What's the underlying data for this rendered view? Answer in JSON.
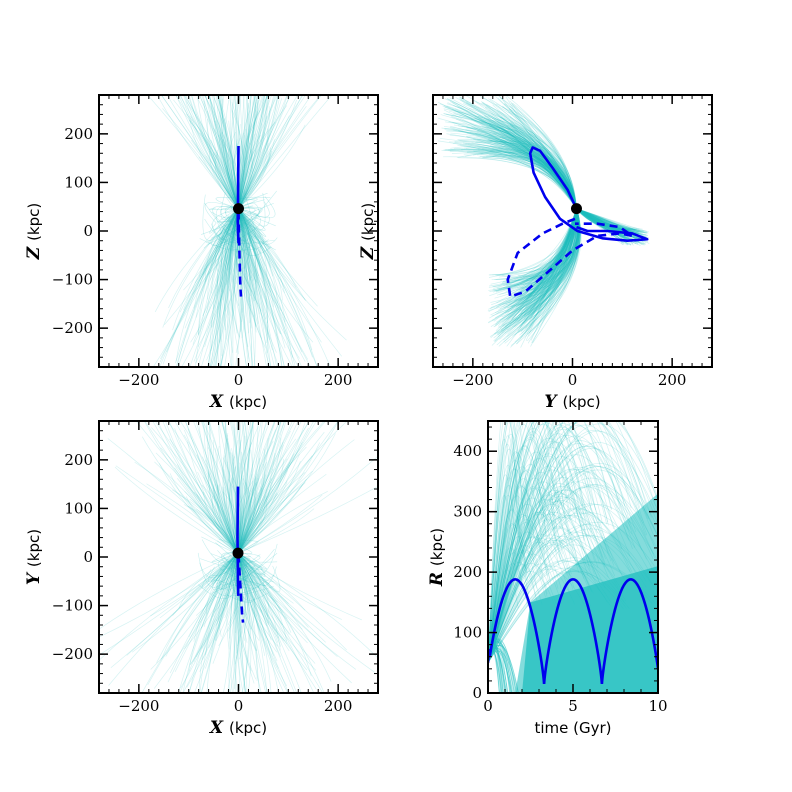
{
  "chart_data": [
    {
      "type": "line",
      "panel": "top-left",
      "xlabel_var": "X",
      "xlabel_unit": "(kpc)",
      "ylabel_var": "Z",
      "ylabel_unit": "(kpc)",
      "xlim": [
        -280,
        280
      ],
      "ylim": [
        -280,
        280
      ],
      "xticks": [
        -200,
        0,
        200
      ],
      "yticks": [
        -200,
        -100,
        0,
        100,
        200
      ],
      "xticklabels": [
        "−200",
        "0",
        "200"
      ],
      "yticklabels": [
        "−200",
        "−100",
        "0",
        "100",
        "200"
      ],
      "marker": {
        "x": 0,
        "y": 46
      },
      "series": [
        {
          "style": "solid",
          "points": [
            [
              0,
              175
            ],
            [
              -0.5,
              120
            ],
            [
              -1,
              60
            ],
            [
              -1.5,
              20
            ],
            [
              -1,
              0
            ],
            [
              0,
              -25
            ]
          ]
        },
        {
          "style": "dashed",
          "points": [
            [
              0,
              40
            ],
            [
              1,
              -10
            ],
            [
              2,
              -50
            ],
            [
              3,
              -90
            ],
            [
              4,
              -120
            ],
            [
              5,
              -135
            ]
          ]
        }
      ],
      "cloud_color": "#1fbfbf",
      "line_color": "#0000ee"
    },
    {
      "type": "line",
      "panel": "top-right",
      "xlabel_var": "Y",
      "xlabel_unit": "(kpc)",
      "ylabel_var": "Z",
      "ylabel_unit": "(kpc)",
      "xlim": [
        -280,
        280
      ],
      "ylim": [
        -280,
        280
      ],
      "xticks": [
        -200,
        0,
        200
      ],
      "yticks": [
        -200,
        -100,
        0,
        100,
        200
      ],
      "xticklabels": [
        "−200",
        "0",
        "200"
      ],
      "yticklabels": [],
      "marker": {
        "x": 8,
        "y": 46
      },
      "series": [
        {
          "style": "solid",
          "points": [
            [
              8,
              46
            ],
            [
              -10,
              85
            ],
            [
              -40,
              130
            ],
            [
              -65,
              165
            ],
            [
              -80,
              172
            ],
            [
              -85,
              160
            ],
            [
              -78,
              120
            ],
            [
              -55,
              70
            ],
            [
              -25,
              25
            ],
            [
              10,
              0
            ],
            [
              60,
              -15
            ],
            [
              110,
              -20
            ],
            [
              150,
              -17
            ],
            [
              120,
              -5
            ],
            [
              70,
              0
            ],
            [
              30,
              0
            ],
            [
              8,
              8
            ]
          ]
        },
        {
          "style": "dashed",
          "points": [
            [
              5,
              25
            ],
            [
              -20,
              15
            ],
            [
              -60,
              -5
            ],
            [
              -110,
              -45
            ],
            [
              -130,
              -100
            ],
            [
              -125,
              -135
            ],
            [
              -95,
              -125
            ],
            [
              -50,
              -85
            ],
            [
              0,
              -40
            ],
            [
              50,
              -10
            ],
            [
              95,
              -5
            ],
            [
              120,
              -10
            ],
            [
              95,
              8
            ],
            [
              50,
              15
            ],
            [
              5,
              15
            ]
          ]
        }
      ],
      "cloud_color": "#1fbfbf",
      "line_color": "#0000ee"
    },
    {
      "type": "line",
      "panel": "bottom-left",
      "xlabel_var": "X",
      "xlabel_unit": "(kpc)",
      "ylabel_var": "Y",
      "ylabel_unit": "(kpc)",
      "xlim": [
        -280,
        280
      ],
      "ylim": [
        -280,
        280
      ],
      "xticks": [
        -200,
        0,
        200
      ],
      "yticks": [
        -200,
        -100,
        0,
        100,
        200
      ],
      "xticklabels": [
        "−200",
        "0",
        "200"
      ],
      "yticklabels": [
        "−200",
        "−100",
        "0",
        "100",
        "200"
      ],
      "marker": {
        "x": -1,
        "y": 8
      },
      "series": [
        {
          "style": "solid",
          "points": [
            [
              -1,
              145
            ],
            [
              -1.5,
              90
            ],
            [
              -2,
              40
            ],
            [
              -1.5,
              0
            ],
            [
              -1,
              -50
            ],
            [
              -0.5,
              -80
            ]
          ]
        },
        {
          "style": "dashed",
          "points": [
            [
              0,
              5
            ],
            [
              2,
              -30
            ],
            [
              5,
              -80
            ],
            [
              7,
              -115
            ],
            [
              9,
              -135
            ]
          ]
        }
      ],
      "cloud_color": "#1fbfbf",
      "line_color": "#0000ee"
    },
    {
      "type": "line",
      "panel": "bottom-right",
      "xlabel_var": "",
      "xlabel_unit": "time (Gyr)",
      "ylabel_var": "R",
      "ylabel_unit": "(kpc)",
      "xlim": [
        0,
        10
      ],
      "ylim": [
        0,
        450
      ],
      "xticks": [
        0,
        5,
        10
      ],
      "yticks": [
        0,
        100,
        200,
        300,
        400
      ],
      "xticklabels": [
        "0",
        "5",
        "10"
      ],
      "yticklabels": [
        "0",
        "100",
        "200",
        "300",
        "400"
      ],
      "orbit": {
        "r_min": 15,
        "r_max": 188,
        "t_apo": [
          1.6,
          5.0,
          8.4
        ],
        "t_peri": [
          3.3,
          6.7
        ],
        "r_start": 50
      },
      "cloud_color": "#1fbfbf",
      "line_color": "#0000ee"
    }
  ]
}
